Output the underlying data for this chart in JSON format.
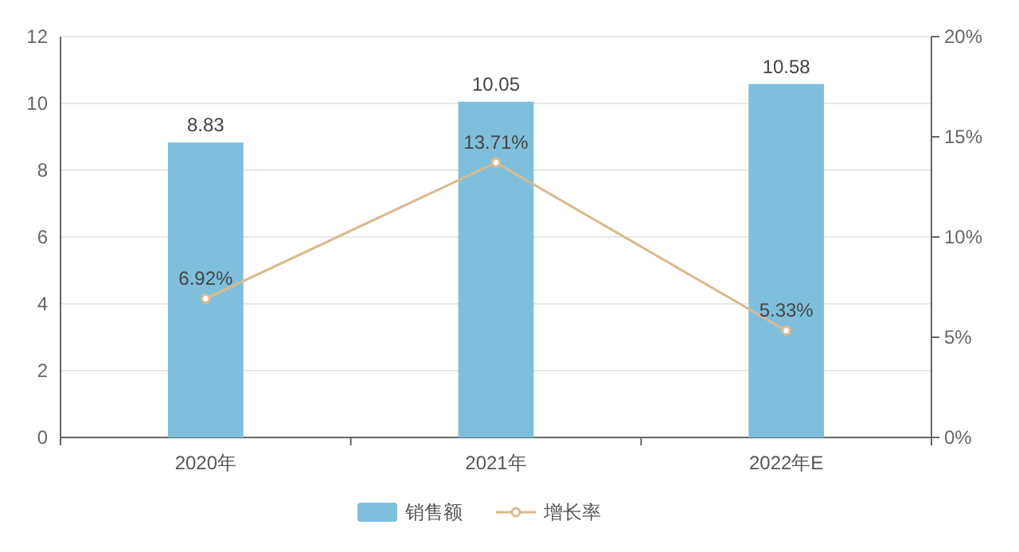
{
  "chart_data": {
    "type": "bar",
    "categories": [
      "2020年",
      "2021年",
      "2022年E"
    ],
    "series": [
      {
        "name": "销售额",
        "color": "#7fbfdc",
        "values": [
          8.83,
          10.05,
          10.58
        ],
        "value_labels": [
          "8.83",
          "10.05",
          "10.58"
        ]
      },
      {
        "name": "增长率",
        "type": "line",
        "axis": "y2",
        "color": "#d9b98e",
        "values": [
          6.92,
          13.71,
          5.33
        ],
        "value_labels": [
          "6.92%",
          "13.71%",
          "5.33%"
        ]
      }
    ],
    "marker": "circle",
    "ylim": [
      0,
      12
    ],
    "yticks": [
      0,
      2,
      4,
      6,
      8,
      10,
      12
    ],
    "y2lim": [
      0,
      20
    ],
    "y2ticks": [
      {
        "value": 0,
        "label": "0%"
      },
      {
        "value": 5,
        "label": "5%"
      },
      {
        "value": 10,
        "label": "10%"
      },
      {
        "value": 15,
        "label": "15%"
      },
      {
        "value": 20,
        "label": "20%"
      }
    ],
    "grid": "y",
    "legend": "bottom"
  }
}
